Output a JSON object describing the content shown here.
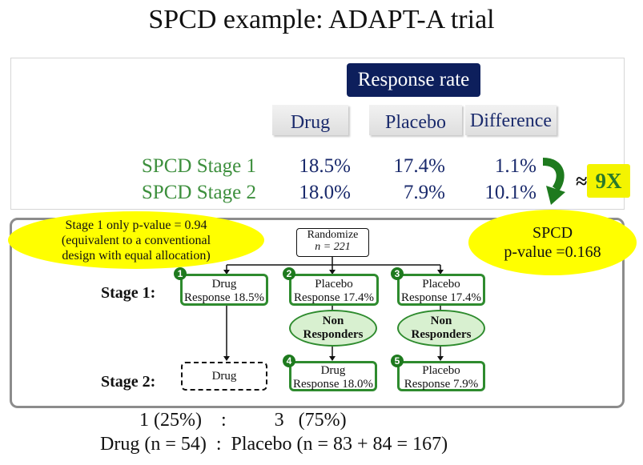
{
  "title": "SPCD example: ADAPT-A trial",
  "table": {
    "group_header": "Response rate",
    "columns": [
      "Drug",
      "Placebo",
      "Difference"
    ],
    "rows": [
      {
        "label": "SPCD Stage 1",
        "drug": "18.5%",
        "placebo": "17.4%",
        "difference": "1.1%"
      },
      {
        "label": "SPCD Stage 2",
        "drug": "18.0%",
        "placebo": "7.9%",
        "difference": "10.1%"
      }
    ],
    "approx_symbol": "≈",
    "ratio": "9X"
  },
  "notes": {
    "stage1": [
      "Stage 1 only p-value = 0.94",
      "(equivalent to a conventional",
      "design with equal allocation)"
    ],
    "spcd": [
      "SPCD",
      "p-value =0.168"
    ]
  },
  "diagram": {
    "randomize": {
      "label": "Randomize",
      "n": "n = 221"
    },
    "stage1_label": "Stage 1:",
    "stage2_label": "Stage 2:",
    "boxes": [
      {
        "num": "1",
        "line1": "Drug",
        "line2": "Response 18.5%"
      },
      {
        "num": "2",
        "line1": "Placebo",
        "line2": "Response 17.4%"
      },
      {
        "num": "3",
        "line1": "Placebo",
        "line2": "Response 17.4%"
      },
      {
        "num": "4",
        "line1": "Drug",
        "line2": "Response 18.0%"
      },
      {
        "num": "5",
        "line1": "Placebo",
        "line2": "Response 7.9%"
      }
    ],
    "non_responders": [
      "Non",
      "Responders"
    ],
    "stage2_drug_dashed": "Drug"
  },
  "allocation": {
    "ratio_line": "1 (25%)    :          3   (75%)",
    "n_line": "Drug (n = 54)  :  Placebo (n = 83 + 84 = 167)"
  },
  "colors": {
    "navy": "#0d1f5c",
    "stage_green": "#3d8f3d",
    "box_green": "#2e8b2e",
    "highlight_yellow": "#ffff00"
  }
}
